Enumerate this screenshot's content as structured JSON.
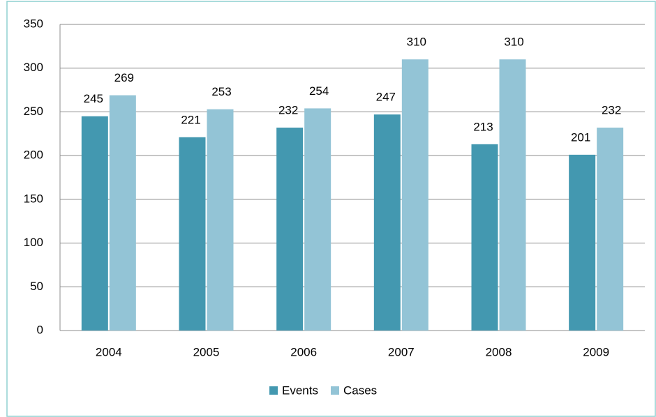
{
  "chart_data": {
    "type": "bar",
    "categories": [
      "2004",
      "2005",
      "2006",
      "2007",
      "2008",
      "2009"
    ],
    "series": [
      {
        "name": "Events",
        "color": "#4398b0",
        "values": [
          245,
          221,
          232,
          247,
          213,
          201
        ]
      },
      {
        "name": "Cases",
        "color": "#93c4d6",
        "values": [
          269,
          253,
          254,
          310,
          310,
          232
        ]
      }
    ],
    "ylim": [
      0,
      350
    ],
    "yticks": [
      0,
      50,
      100,
      150,
      200,
      250,
      300,
      350
    ],
    "grid": true,
    "legend": "bottom"
  }
}
